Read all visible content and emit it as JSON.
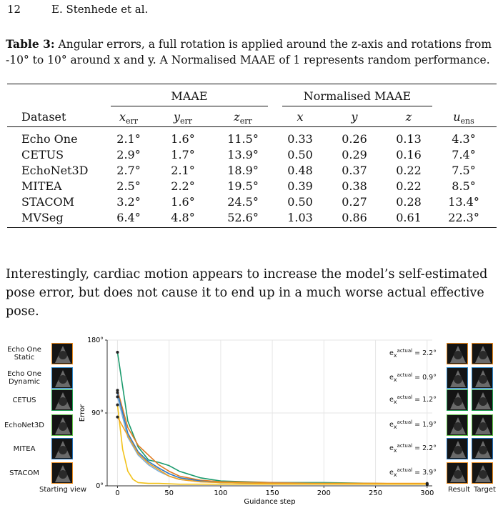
{
  "running_head": {
    "page": "12",
    "authors": "E. Stenhede et al."
  },
  "caption": {
    "label": "Table 3:",
    "text": "Angular errors, a full rotation is applied around the z-axis and rotations from -10° to 10° around x and y. A Normalised MAAE of 1 represents random performance."
  },
  "table": {
    "group_headers": {
      "maae": "MAAE",
      "normalised": "Normalised MAAE"
    },
    "col_headers": {
      "dataset": "Dataset",
      "x_err": "x",
      "y_err": "y",
      "z_err": "z",
      "err_sub": "err",
      "nx": "x",
      "ny": "y",
      "nz": "z",
      "u": "u",
      "u_sub": "ens"
    },
    "rows": [
      {
        "dataset": "Echo One",
        "x": "2.1°",
        "y": "1.6°",
        "z": "11.5°",
        "nx": "0.33",
        "ny": "0.26",
        "nz": "0.13",
        "u": "4.3°"
      },
      {
        "dataset": "CETUS",
        "x": "2.9°",
        "y": "1.7°",
        "z": "13.9°",
        "nx": "0.50",
        "ny": "0.29",
        "nz": "0.16",
        "u": "7.4°"
      },
      {
        "dataset": "EchoNet3D",
        "x": "2.7°",
        "y": "2.1°",
        "z": "18.9°",
        "nx": "0.48",
        "ny": "0.37",
        "nz": "0.22",
        "u": "7.5°"
      },
      {
        "dataset": "MITEA",
        "x": "2.5°",
        "y": "2.2°",
        "z": "19.5°",
        "nx": "0.39",
        "ny": "0.38",
        "nz": "0.22",
        "u": "8.5°"
      },
      {
        "dataset": "STACOM",
        "x": "3.2°",
        "y": "1.6°",
        "z": "24.5°",
        "nx": "0.50",
        "ny": "0.27",
        "nz": "0.28",
        "u": "13.4°"
      },
      {
        "dataset": "MVSeg",
        "x": "6.4°",
        "y": "4.8°",
        "z": "52.6°",
        "nx": "1.03",
        "ny": "0.86",
        "nz": "0.61",
        "u": "22.3°"
      }
    ]
  },
  "paragraph": "Interestingly, cardiac motion appears to increase the model’s self-estimated pose error, but does not cause it to end up in a much worse actual effective pose.",
  "figure": {
    "row_labels": [
      "Echo One Static",
      "Echo One Dynamic",
      "CETUS",
      "EchoNet3D",
      "MITEA",
      "STACOM"
    ],
    "row_label_lines": [
      [
        "Echo One",
        "Static"
      ],
      [
        "Echo One",
        "Dynamic"
      ],
      [
        "CETUS"
      ],
      [
        "EchoNet3D"
      ],
      [
        "MITEA"
      ],
      [
        "STACOM"
      ]
    ],
    "starting_view_label": "Starting view",
    "result_label": "Result",
    "target_label": "Target",
    "thumb_colors": [
      "#e8891c",
      "#2a86c8",
      "#1f9e50",
      "#5fc44a",
      "#1f6fb8",
      "#e8891c"
    ],
    "error_labels": [
      "e_x^actual = 2.2°",
      "e_x^actual = 0.9°",
      "e_x^actual = 1.2°",
      "e_x^actual = 1.9°",
      "e_x^actual = 2.2°",
      "e_x^actual = 3.9°"
    ],
    "error_values": [
      "2.2",
      "0.9",
      "1.2",
      "1.9",
      "2.2",
      "3.9"
    ],
    "err_sup": "actual",
    "err_sub": "x",
    "err_prefix": "e",
    "err_unit": "°"
  },
  "chart_data": {
    "type": "line",
    "xlabel": "Guidance step",
    "ylabel": "Error",
    "xlim": [
      -10,
      305
    ],
    "ylim": [
      0,
      180
    ],
    "xticks": [
      0,
      50,
      100,
      150,
      200,
      250,
      300
    ],
    "yticks": [
      0,
      90,
      180
    ],
    "ytick_labels": [
      "0°",
      "90°",
      "180°"
    ],
    "grid": true,
    "series": [
      {
        "color": "#1a9a6c",
        "x": [
          0,
          10,
          20,
          30,
          40,
          50,
          60,
          80,
          100,
          150,
          200,
          250,
          300
        ],
        "y": [
          165,
          80,
          48,
          32,
          29,
          25,
          18,
          10,
          6,
          4,
          4,
          3,
          2
        ]
      },
      {
        "color": "#e07b20",
        "x": [
          0,
          10,
          20,
          30,
          40,
          50,
          60,
          80,
          100,
          150,
          200,
          250,
          300
        ],
        "y": [
          118,
          72,
          50,
          38,
          26,
          18,
          12,
          7,
          5,
          4,
          3,
          3,
          2
        ]
      },
      {
        "color": "#2a76c6",
        "x": [
          0,
          10,
          20,
          30,
          40,
          50,
          60,
          80,
          100,
          150,
          200,
          250,
          300
        ],
        "y": [
          115,
          65,
          42,
          30,
          22,
          15,
          10,
          6,
          4,
          3,
          3,
          2,
          2
        ]
      },
      {
        "color": "#7fb0d8",
        "x": [
          0,
          10,
          20,
          30,
          40,
          50,
          60,
          80,
          100,
          150,
          200,
          250,
          300
        ],
        "y": [
          110,
          60,
          38,
          26,
          18,
          12,
          8,
          5,
          4,
          3,
          3,
          2,
          2
        ]
      },
      {
        "color": "#f2c21a",
        "x": [
          0,
          5,
          10,
          15,
          20,
          30,
          40,
          60,
          100,
          150,
          200,
          250,
          300
        ],
        "y": [
          100,
          45,
          18,
          8,
          4,
          3,
          3,
          2,
          2,
          2,
          2,
          2,
          2
        ]
      },
      {
        "color": "#f0a020",
        "x": [
          0,
          10,
          20,
          30,
          40,
          50,
          60,
          80,
          100,
          150,
          200,
          250,
          300
        ],
        "y": [
          85,
          62,
          40,
          28,
          20,
          12,
          8,
          5,
          4,
          3,
          3,
          3,
          3
        ]
      }
    ]
  }
}
